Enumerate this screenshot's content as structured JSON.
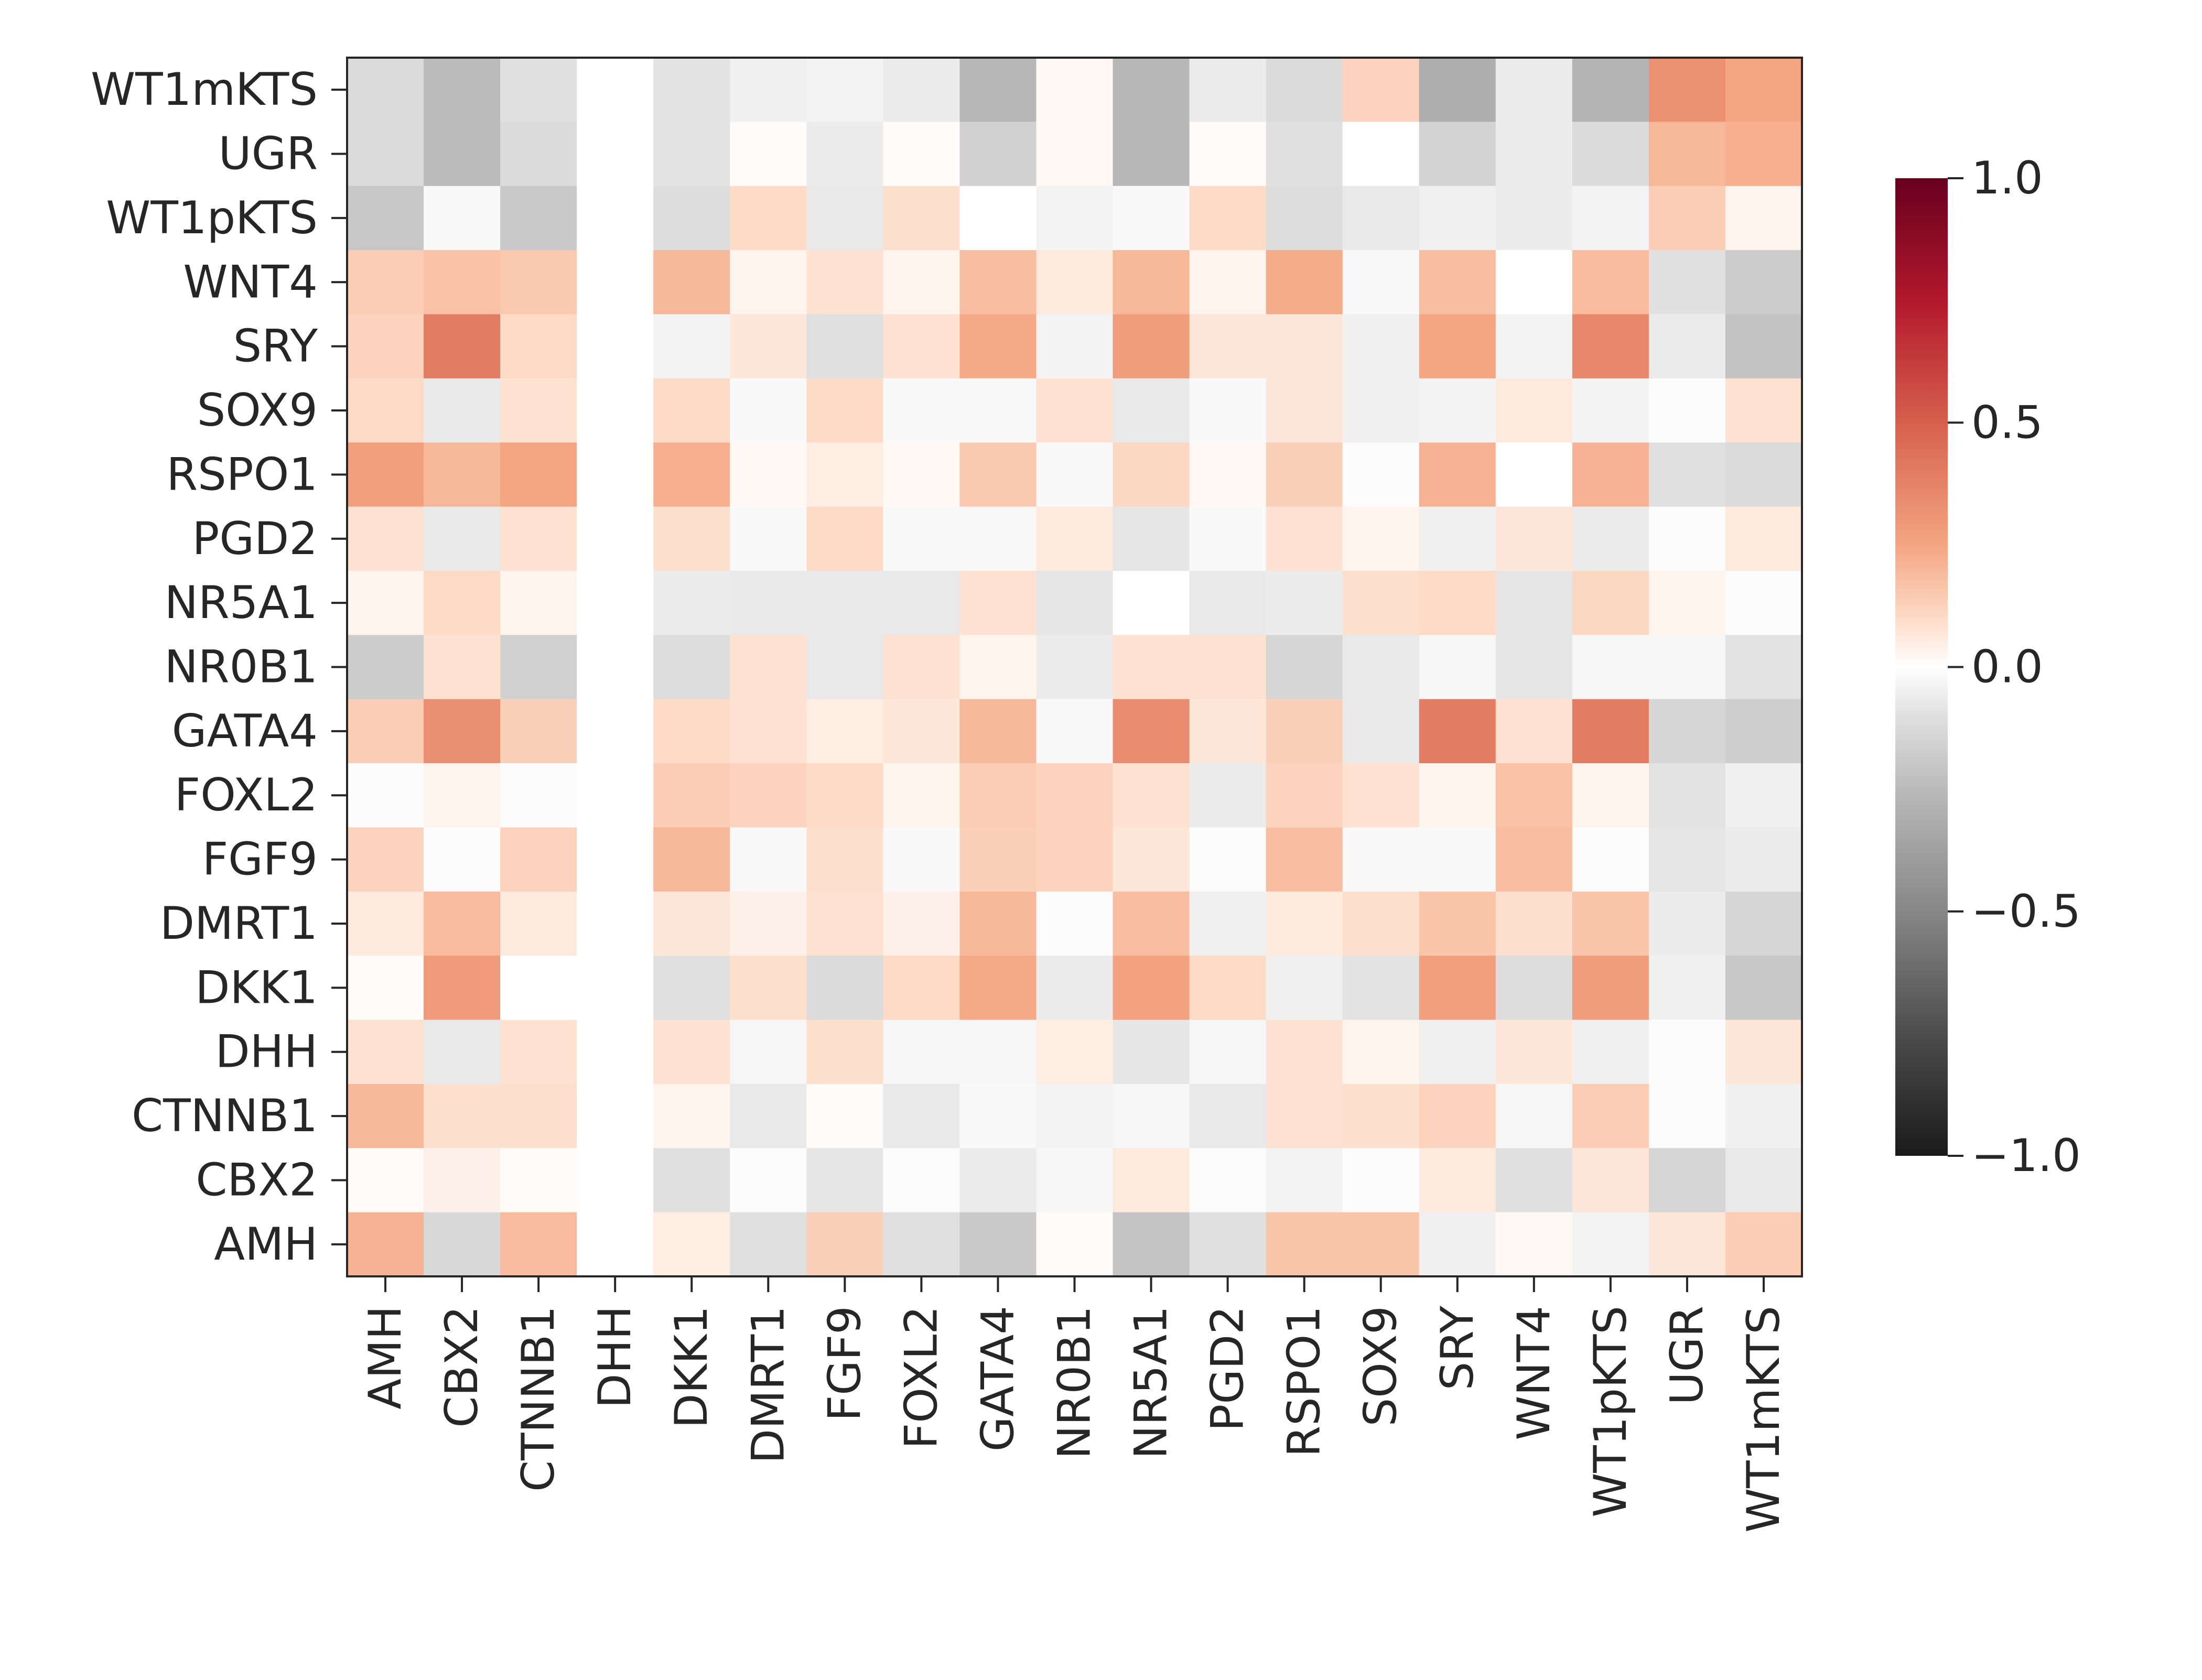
{
  "chart_data": {
    "type": "heatmap",
    "title": "",
    "xlabel": "",
    "ylabel": "",
    "x_categories": [
      "AMH",
      "CBX2",
      "CTNNB1",
      "DHH",
      "DKK1",
      "DMRT1",
      "FGF9",
      "FOXL2",
      "GATA4",
      "NR0B1",
      "NR5A1",
      "PGD2",
      "RSPO1",
      "SOX9",
      "SRY",
      "WNT4",
      "WT1pKTS",
      "UGR",
      "WT1mKTS"
    ],
    "y_categories": [
      "WT1mKTS",
      "UGR",
      "WT1pKTS",
      "WNT4",
      "SRY",
      "SOX9",
      "RSPO1",
      "PGD2",
      "NR5A1",
      "NR0B1",
      "GATA4",
      "FOXL2",
      "FGF9",
      "DMRT1",
      "DKK1",
      "DHH",
      "CTNNB1",
      "CBX2",
      "AMH"
    ],
    "values": [
      [
        -0.12,
        -0.25,
        -0.1,
        0,
        -0.09,
        -0.05,
        -0.04,
        -0.06,
        -0.26,
        0.02,
        -0.26,
        -0.06,
        -0.12,
        0.12,
        -0.31,
        -0.06,
        -0.28,
        0.32,
        0.25
      ],
      [
        -0.12,
        -0.25,
        -0.12,
        0,
        -0.09,
        0.01,
        -0.06,
        0.01,
        -0.16,
        0.02,
        -0.26,
        0.01,
        -0.1,
        0,
        -0.15,
        -0.06,
        -0.12,
        0.2,
        0.22
      ],
      [
        -0.2,
        -0.02,
        -0.19,
        0,
        -0.11,
        0.1,
        -0.07,
        0.09,
        0,
        -0.04,
        -0.02,
        0.1,
        -0.11,
        -0.07,
        -0.05,
        -0.06,
        -0.04,
        0.14,
        0.03
      ],
      [
        0.14,
        0.17,
        0.15,
        0,
        0.2,
        0.03,
        0.08,
        0.03,
        0.18,
        0.06,
        0.2,
        0.03,
        0.23,
        -0.02,
        0.18,
        0,
        0.19,
        -0.1,
        -0.18
      ],
      [
        0.12,
        0.4,
        0.1,
        0,
        -0.04,
        0.07,
        -0.1,
        0.08,
        0.24,
        -0.04,
        0.28,
        0.07,
        0.07,
        -0.05,
        0.25,
        -0.04,
        0.36,
        -0.06,
        -0.22
      ],
      [
        0.1,
        -0.07,
        0.08,
        0,
        0.1,
        -0.02,
        0.1,
        -0.02,
        -0.02,
        0.08,
        -0.07,
        -0.02,
        0.07,
        -0.05,
        -0.04,
        0.06,
        -0.04,
        -0.01,
        0.08
      ],
      [
        0.27,
        0.2,
        0.25,
        0,
        0.22,
        0.02,
        0.05,
        0.02,
        0.15,
        -0.02,
        0.11,
        0.02,
        0.13,
        -0.01,
        0.21,
        0,
        0.21,
        -0.1,
        -0.12
      ],
      [
        0.08,
        -0.07,
        0.08,
        0,
        0.09,
        -0.02,
        0.1,
        -0.02,
        -0.02,
        0.06,
        -0.08,
        -0.02,
        0.08,
        0.03,
        -0.05,
        0.07,
        -0.06,
        -0.01,
        0.06
      ],
      [
        0.03,
        0.1,
        0.03,
        0,
        -0.06,
        -0.07,
        -0.07,
        -0.07,
        0.08,
        -0.08,
        0,
        -0.07,
        -0.06,
        0.09,
        0.1,
        -0.08,
        0.11,
        0.03,
        -0.01
      ],
      [
        -0.18,
        0.08,
        -0.16,
        0,
        -0.11,
        0.08,
        -0.07,
        0.08,
        0.03,
        -0.06,
        0.08,
        0.08,
        -0.14,
        -0.07,
        -0.03,
        -0.08,
        -0.03,
        -0.03,
        -0.09
      ],
      [
        0.14,
        0.33,
        0.13,
        0,
        0.1,
        0.08,
        0.05,
        0.07,
        0.2,
        -0.02,
        0.34,
        0.07,
        0.13,
        -0.07,
        0.4,
        0.08,
        0.39,
        -0.14,
        -0.17
      ],
      [
        -0.01,
        0.03,
        -0.01,
        0,
        0.14,
        0.12,
        0.1,
        0.03,
        0.14,
        0.12,
        0.08,
        -0.06,
        0.12,
        0.08,
        0.03,
        0.17,
        0.03,
        -0.09,
        -0.05
      ],
      [
        0.12,
        -0.01,
        0.12,
        0,
        0.2,
        -0.02,
        0.09,
        -0.02,
        0.13,
        0.12,
        0.07,
        -0.01,
        0.18,
        -0.02,
        -0.02,
        0.18,
        -0.01,
        -0.08,
        -0.06
      ],
      [
        0.06,
        0.19,
        0.06,
        0,
        0.07,
        0.04,
        0.08,
        0.04,
        0.2,
        -0.01,
        0.18,
        -0.05,
        0.06,
        0.09,
        0.16,
        0.09,
        0.16,
        -0.06,
        -0.14
      ],
      [
        0.01,
        0.29,
        0,
        0,
        -0.1,
        0.09,
        -0.12,
        0.1,
        0.24,
        -0.06,
        0.26,
        0.1,
        -0.05,
        -0.09,
        0.27,
        -0.11,
        0.28,
        -0.05,
        -0.2
      ],
      [
        0.08,
        -0.07,
        0.08,
        0,
        0.08,
        -0.03,
        0.09,
        -0.03,
        -0.03,
        0.05,
        -0.08,
        -0.03,
        0.08,
        0.03,
        -0.05,
        0.07,
        -0.05,
        -0.01,
        0.07
      ],
      [
        0.2,
        0.09,
        0.09,
        0,
        0.03,
        -0.07,
        0.01,
        -0.07,
        -0.02,
        -0.04,
        -0.03,
        -0.07,
        0.08,
        0.09,
        0.12,
        -0.03,
        0.14,
        -0.01,
        -0.05
      ],
      [
        0.01,
        0.04,
        0.01,
        0,
        -0.1,
        -0.01,
        -0.08,
        -0.01,
        -0.06,
        -0.03,
        0.06,
        -0.01,
        -0.04,
        -0.01,
        0.06,
        -0.1,
        0.07,
        -0.14,
        -0.07
      ],
      [
        0.21,
        -0.13,
        0.19,
        0,
        0.05,
        -0.1,
        0.13,
        -0.1,
        -0.19,
        0.01,
        -0.21,
        -0.1,
        0.16,
        0.16,
        -0.05,
        0.02,
        -0.04,
        0.07,
        0.14
      ]
    ],
    "vmin": -1.0,
    "vmax": 1.0,
    "colormap": "RdGy_r",
    "colorbar": {
      "ticks": [
        1.0,
        0.5,
        0.0,
        -0.5,
        -1.0
      ],
      "tick_labels": [
        "1.0",
        "0.5",
        "0.0",
        "−0.5",
        "−1.0"
      ],
      "placement": "right"
    },
    "grid": false
  }
}
